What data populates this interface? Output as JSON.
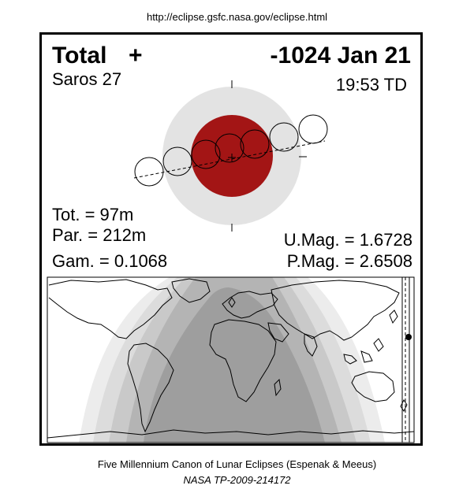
{
  "header": {
    "url": "http://eclipse.gsfc.nasa.gov/eclipse.html"
  },
  "eclipse": {
    "type": "Total",
    "type_symbol": "+",
    "date": "-1024 Jan 21",
    "saros": "Saros  27",
    "time": "19:53 TD",
    "tot": "Tot. =  97m",
    "par": "Par. = 212m",
    "gam": "Gam. = 0.1068",
    "umag": "U.Mag. = 1.6728",
    "pmag": "P.Mag. = 2.6508"
  },
  "colors": {
    "umbra": "#a31515",
    "penumbra": "#e3e3e3",
    "map_night": "#9e9e9e",
    "map_band_1": "#b4b4b4",
    "map_band_2": "#c9c9c9",
    "map_band_3": "#dcdcdc",
    "map_band_4": "#ececec"
  },
  "footer": {
    "canon": "Five Millennium Canon of Lunar Eclipses (Espenak & Meeus)",
    "reference": "NASA TP-2009-214172"
  }
}
